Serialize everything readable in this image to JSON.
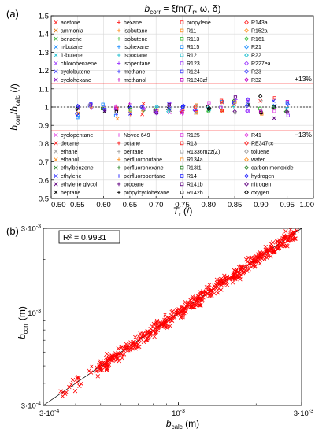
{
  "chart_data": [
    {
      "panel_label": "(a)",
      "type": "scatter",
      "title_parts": {
        "b": "b",
        "sub": "corr",
        "rest": " = ξfn(",
        "t": "T",
        "tsub": "r",
        "tail": ", ω, δ)"
      },
      "xlabel_parts": {
        "main": "T",
        "sub": "r",
        "unit": " (/)"
      },
      "ylabel_parts": {
        "b1": "b",
        "s1": "corr",
        "slash": "/",
        "b2": "b",
        "s2": "calc",
        "unit": " (/)"
      },
      "xlim": [
        0.5,
        1.0
      ],
      "ylim": [
        0.5,
        1.5
      ],
      "xticks": [
        "0.50",
        "0.55",
        "0.60",
        "0.65",
        "0.70",
        "0.75",
        "0.80",
        "0.85",
        "0.90",
        "0.95",
        "1.00"
      ],
      "yticks": [
        "0.5",
        "0.6",
        "0.7",
        "0.8",
        "0.9",
        "1",
        "1.1",
        "1.2",
        "1.3",
        "1.4",
        "1.5"
      ],
      "ref_lines": [
        {
          "y": 1.13,
          "label": "+13%",
          "color": "#ff0000",
          "style": "solid"
        },
        {
          "y": 0.87,
          "label": "−13%",
          "color": "#ff0000",
          "style": "solid"
        },
        {
          "y": 1.0,
          "label": "",
          "color": "#000000",
          "style": "dashed"
        }
      ],
      "x_values": [
        0.55,
        0.575,
        0.6,
        0.625,
        0.65,
        0.675,
        0.7,
        0.725,
        0.75,
        0.775,
        0.8,
        0.825,
        0.85,
        0.875,
        0.9,
        0.925,
        0.95
      ],
      "envelope_upper": [
        1.07,
        1.06,
        1.05,
        1.05,
        1.05,
        1.05,
        1.05,
        1.05,
        1.05,
        1.05,
        1.06,
        1.07,
        1.08,
        1.09,
        1.1,
        1.11,
        1.12
      ],
      "envelope_lower": [
        0.9,
        0.91,
        0.92,
        0.92,
        0.93,
        0.93,
        0.93,
        0.93,
        0.93,
        0.93,
        0.93,
        0.92,
        0.92,
        0.91,
        0.9,
        0.89,
        0.88
      ],
      "legend_top": [
        [
          {
            "name": "acetone",
            "marker": "x",
            "color": "#ff2020"
          },
          {
            "name": "ammonia",
            "marker": "x",
            "color": "#e07000"
          },
          {
            "name": "benzene",
            "marker": "x",
            "color": "#30b030"
          },
          {
            "name": "n-butane",
            "marker": "x",
            "color": "#2090ff"
          },
          {
            "name": "1-butene",
            "marker": "x",
            "color": "#20c0d0"
          },
          {
            "name": "chlorobenzene",
            "marker": "x",
            "color": "#a040ff"
          },
          {
            "name": "cyclobutene",
            "marker": "x",
            "color": "#4040ff"
          },
          {
            "name": "cyclohexane",
            "marker": "x",
            "color": "#8000c0"
          }
        ],
        [
          {
            "name": "hexane",
            "marker": "+",
            "color": "#ff3030"
          },
          {
            "name": "isobutane",
            "marker": "+",
            "color": "#ff9020"
          },
          {
            "name": "isobutene",
            "marker": "+",
            "color": "#40c040"
          },
          {
            "name": "isohexane",
            "marker": "+",
            "color": "#2090ff"
          },
          {
            "name": "isooctane",
            "marker": "+",
            "color": "#20c0d0"
          },
          {
            "name": "isopentane",
            "marker": "+",
            "color": "#a040ff"
          },
          {
            "name": "methane",
            "marker": "+",
            "color": "#4040ff"
          },
          {
            "name": "methanol",
            "marker": "+",
            "color": "#c000c0"
          }
        ],
        [
          {
            "name": "propylene",
            "marker": "square",
            "color": "#ff3030"
          },
          {
            "name": "R11",
            "marker": "square",
            "color": "#ff9020"
          },
          {
            "name": "R113",
            "marker": "square",
            "color": "#40c040"
          },
          {
            "name": "R115",
            "marker": "square",
            "color": "#2090ff"
          },
          {
            "name": "R12",
            "marker": "square",
            "color": "#20c0d0"
          },
          {
            "name": "R123",
            "marker": "square",
            "color": "#a040ff"
          },
          {
            "name": "R124",
            "marker": "square",
            "color": "#4040ff"
          },
          {
            "name": "R1243zf",
            "marker": "square",
            "color": "#c000c0"
          }
        ],
        [
          {
            "name": "R143a",
            "marker": "diamond",
            "color": "#ff3030"
          },
          {
            "name": "R152a",
            "marker": "diamond",
            "color": "#ff9020"
          },
          {
            "name": "R161",
            "marker": "diamond",
            "color": "#40c040"
          },
          {
            "name": "R21",
            "marker": "diamond",
            "color": "#2090ff"
          },
          {
            "name": "R22",
            "marker": "diamond",
            "color": "#20c0d0"
          },
          {
            "name": "R227ea",
            "marker": "diamond",
            "color": "#a040ff"
          },
          {
            "name": "R23",
            "marker": "diamond",
            "color": "#4040ff"
          },
          {
            "name": "R32",
            "marker": "diamond",
            "color": "#c000c0"
          }
        ]
      ],
      "legend_bottom": [
        [
          {
            "name": "cyclopentane",
            "marker": "x",
            "color": "#e040e0"
          },
          {
            "name": "decane",
            "marker": "x",
            "color": "#ff2020"
          },
          {
            "name": "ethane",
            "marker": "x",
            "color": "#a0a0a0"
          },
          {
            "name": "ethanol",
            "marker": "x",
            "color": "#ff9020"
          },
          {
            "name": "ethylbenzene",
            "marker": "x",
            "color": "#208020"
          },
          {
            "name": "ethylene",
            "marker": "x",
            "color": "#2020ff"
          },
          {
            "name": "ethylene glycol",
            "marker": "x",
            "color": "#600080"
          },
          {
            "name": "heptane",
            "marker": "x",
            "color": "#000000"
          }
        ],
        [
          {
            "name": "Novec 649",
            "marker": "+",
            "color": "#e040e0"
          },
          {
            "name": "octane",
            "marker": "+",
            "color": "#ff2020"
          },
          {
            "name": "pentane",
            "marker": "+",
            "color": "#a0a0a0"
          },
          {
            "name": "perfluorobutane",
            "marker": "+",
            "color": "#ff9020"
          },
          {
            "name": "perfluorohexane",
            "marker": "+",
            "color": "#208020"
          },
          {
            "name": "perfluoropentane",
            "marker": "+",
            "color": "#2020ff"
          },
          {
            "name": "propane",
            "marker": "+",
            "color": "#600080"
          },
          {
            "name": "propylcyclohexane",
            "marker": "+",
            "color": "#000000"
          }
        ],
        [
          {
            "name": "R125",
            "marker": "square",
            "color": "#e040e0"
          },
          {
            "name": "R13",
            "marker": "square",
            "color": "#ff2020"
          },
          {
            "name": "R1336mzz(Z)",
            "marker": "square",
            "color": "#a0a0a0"
          },
          {
            "name": "R134a",
            "marker": "square",
            "color": "#ff9020"
          },
          {
            "name": "R13I1",
            "marker": "square",
            "color": "#208020"
          },
          {
            "name": "R14",
            "marker": "square",
            "color": "#2020ff"
          },
          {
            "name": "R141b",
            "marker": "square",
            "color": "#600080"
          },
          {
            "name": "R142b",
            "marker": "square",
            "color": "#000000"
          }
        ],
        [
          {
            "name": "R41",
            "marker": "diamond",
            "color": "#e040e0"
          },
          {
            "name": "RE347cc",
            "marker": "diamond",
            "color": "#ff2020"
          },
          {
            "name": "toluene",
            "marker": "diamond",
            "color": "#a0a0a0"
          },
          {
            "name": "water",
            "marker": "diamond",
            "color": "#ff9020"
          },
          {
            "name": "carbon monoxide",
            "marker": "diamond",
            "color": "#208020"
          },
          {
            "name": "hydrogen",
            "marker": "diamond",
            "color": "#2020ff"
          },
          {
            "name": "nitrogen",
            "marker": "diamond",
            "color": "#600080"
          },
          {
            "name": "oxygen",
            "marker": "diamond",
            "color": "#000000"
          }
        ]
      ]
    },
    {
      "panel_label": "(b)",
      "type": "scatter",
      "scale": "log",
      "annotation": "R² = 0.9931",
      "xlabel_parts": {
        "main": "b",
        "sub": "calc",
        "unit": " (m)"
      },
      "ylabel_parts": {
        "main": "b",
        "sub": "corr",
        "unit": " (m)"
      },
      "xlim": [
        0.0003,
        0.003
      ],
      "ylim": [
        0.0003,
        0.003
      ],
      "x_ticks": [
        {
          "value": 0.0003,
          "mant": "3·10",
          "exp": "-4"
        },
        {
          "value": 0.001,
          "mant": "10",
          "exp": "-3"
        },
        {
          "value": 0.003,
          "mant": "3·10",
          "exp": "-3"
        }
      ],
      "y_ticks": [
        {
          "value": 0.0003,
          "mant": "3·10",
          "exp": "-4"
        },
        {
          "value": 0.001,
          "mant": "10",
          "exp": "-3"
        },
        {
          "value": 0.003,
          "mant": "3·10",
          "exp": "-3"
        }
      ],
      "marker": "x",
      "color": "#ff0000",
      "diagonal": "y = x",
      "x_range": [
        0.00035,
        0.0029
      ],
      "ratio_spread": [
        0.87,
        1.13
      ]
    }
  ]
}
